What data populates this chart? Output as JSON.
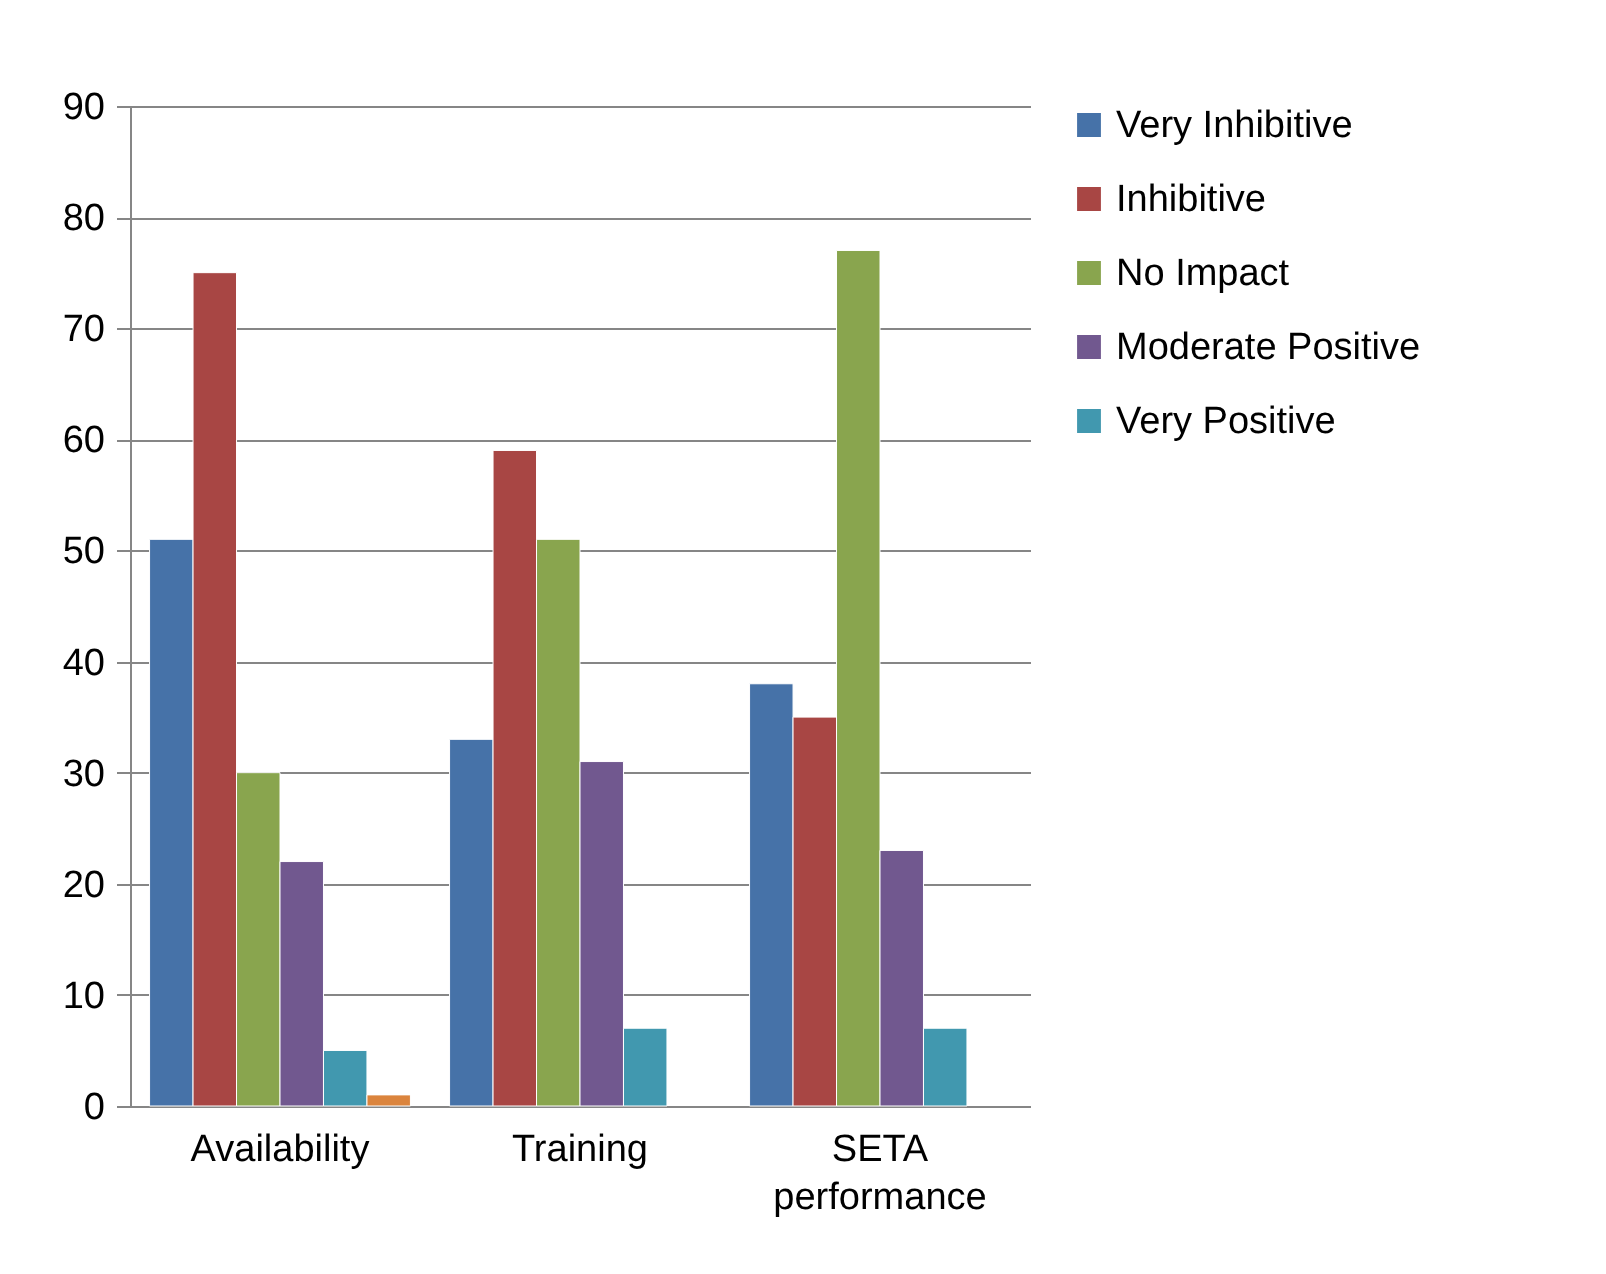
{
  "chart_data": {
    "type": "bar",
    "categories": [
      "Availability",
      "Training",
      "SETA performance"
    ],
    "series": [
      {
        "name": "Very Inhibitive",
        "color": "#4672a8",
        "values": [
          51,
          33,
          38
        ]
      },
      {
        "name": "Inhibitive",
        "color": "#a84644",
        "values": [
          75,
          59,
          35
        ]
      },
      {
        "name": "No  Impact",
        "color": "#89a54e",
        "values": [
          30,
          51,
          77
        ]
      },
      {
        "name": "Moderate Positive",
        "color": "#71588f",
        "values": [
          22,
          31,
          23
        ]
      },
      {
        "name": "Very Positive",
        "color": "#4198af",
        "values": [
          5,
          7,
          7
        ]
      },
      {
        "color": "#db843d",
        "values": [
          1,
          null,
          null
        ]
      }
    ],
    "ylim": [
      0,
      90
    ],
    "yticks": [
      0,
      10,
      20,
      30,
      40,
      50,
      60,
      70,
      80,
      90
    ],
    "grid": "y",
    "legend": "right"
  }
}
